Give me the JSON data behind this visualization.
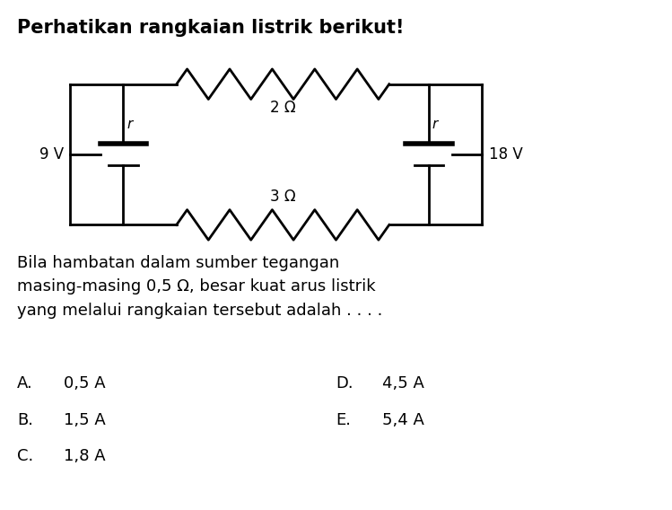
{
  "title": "Perhatikan rangkaian listrik berikut!",
  "title_fontsize": 15,
  "bg_color": "#ffffff",
  "text_color": "#000000",
  "paragraph": "Bila hambatan dalam sumber tegangan\nmasing-masing 0,5 Ω, besar kuat arus listrik\nyang melalui rangkaian tersebut adalah . . . .",
  "para_fontsize": 13,
  "options": [
    {
      "label": "A.",
      "value": "0,5 A",
      "col": 0
    },
    {
      "label": "B.",
      "value": "1,5 A",
      "col": 0
    },
    {
      "label": "C.",
      "value": "1,8 A",
      "col": 0
    },
    {
      "label": "D.",
      "value": "4,5 A",
      "col": 1
    },
    {
      "label": "E.",
      "value": "5,4 A",
      "col": 1
    }
  ],
  "option_fontsize": 13,
  "line_color": "#000000",
  "line_width": 2.0,
  "L": 0.1,
  "R": 0.72,
  "T": 0.84,
  "B": 0.56,
  "BL": 0.18,
  "BR": 0.64
}
